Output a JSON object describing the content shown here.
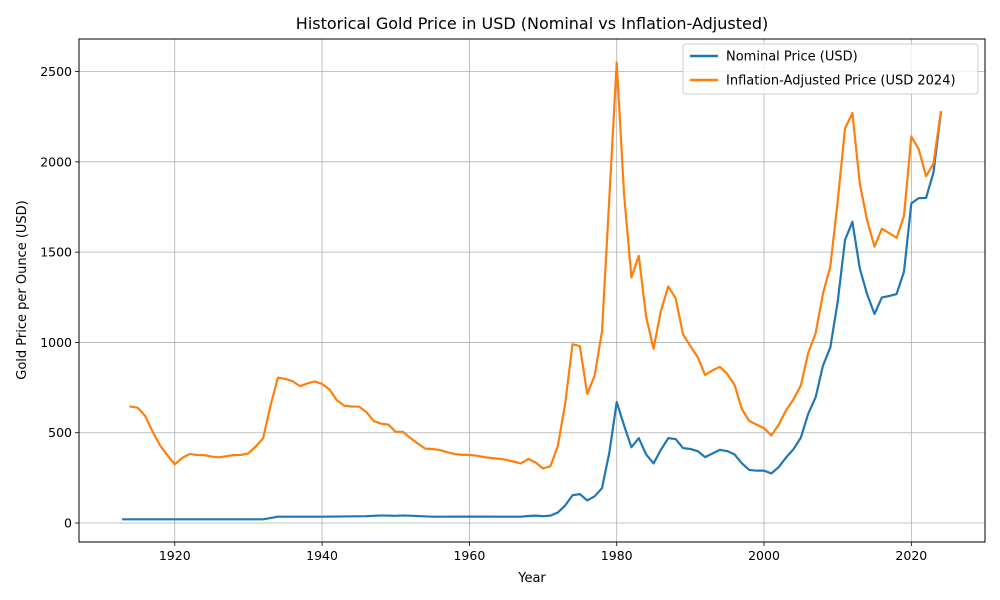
{
  "chart_data": {
    "type": "line",
    "title": "Historical Gold Price in USD (Nominal vs Inflation-Adjusted)",
    "xlabel": "Year",
    "ylabel": "Gold Price per Ounce (USD)",
    "xlim": [
      1907,
      2030
    ],
    "ylim": [
      -105,
      2680
    ],
    "xticks": [
      1920,
      1940,
      1960,
      1980,
      2000,
      2020
    ],
    "yticks": [
      0,
      500,
      1000,
      1500,
      2000,
      2500
    ],
    "grid": true,
    "legend_position": "top-right",
    "series": [
      {
        "name": "Nominal Price (USD)",
        "color": "#1f77b4",
        "points": [
          [
            1913,
            20.67
          ],
          [
            1920,
            20.67
          ],
          [
            1932,
            20.67
          ],
          [
            1934,
            35
          ],
          [
            1940,
            35
          ],
          [
            1946,
            38
          ],
          [
            1948,
            42
          ],
          [
            1950,
            40
          ],
          [
            1951,
            42
          ],
          [
            1955,
            35
          ],
          [
            1960,
            35.3
          ],
          [
            1967,
            35
          ],
          [
            1968,
            39
          ],
          [
            1969,
            41
          ],
          [
            1970,
            38
          ],
          [
            1971,
            41
          ],
          [
            1972,
            58
          ],
          [
            1973,
            97
          ],
          [
            1974,
            154
          ],
          [
            1975,
            160
          ],
          [
            1976,
            125
          ],
          [
            1977,
            148
          ],
          [
            1978,
            193
          ],
          [
            1979,
            390
          ],
          [
            1980,
            670
          ],
          [
            1981,
            540
          ],
          [
            1982,
            420
          ],
          [
            1983,
            470
          ],
          [
            1984,
            380
          ],
          [
            1985,
            330
          ],
          [
            1986,
            405
          ],
          [
            1987,
            470
          ],
          [
            1988,
            465
          ],
          [
            1989,
            415
          ],
          [
            1990,
            410
          ],
          [
            1991,
            398
          ],
          [
            1992,
            365
          ],
          [
            1993,
            385
          ],
          [
            1994,
            405
          ],
          [
            1995,
            398
          ],
          [
            1996,
            380
          ],
          [
            1997,
            330
          ],
          [
            1998,
            294
          ],
          [
            1999,
            290
          ],
          [
            2000,
            290
          ],
          [
            2001,
            275
          ],
          [
            2002,
            310
          ],
          [
            2003,
            363
          ],
          [
            2004,
            409
          ],
          [
            2005,
            473
          ],
          [
            2006,
            605
          ],
          [
            2007,
            696
          ],
          [
            2008,
            871
          ],
          [
            2009,
            972
          ],
          [
            2010,
            1224
          ],
          [
            2011,
            1568
          ],
          [
            2012,
            1668
          ],
          [
            2013,
            1410
          ],
          [
            2014,
            1266
          ],
          [
            2015,
            1158
          ],
          [
            2016,
            1249
          ],
          [
            2017,
            1257
          ],
          [
            2018,
            1268
          ],
          [
            2019,
            1392
          ],
          [
            2020,
            1770
          ],
          [
            2021,
            1799
          ],
          [
            2022,
            1800
          ],
          [
            2023,
            1940
          ],
          [
            2024,
            2270
          ]
        ]
      },
      {
        "name": "Inflation-Adjusted Price (USD 2024)",
        "color": "#ff7f0e",
        "points": [
          [
            1914,
            645
          ],
          [
            1915,
            638
          ],
          [
            1916,
            592
          ],
          [
            1917,
            505
          ],
          [
            1918,
            430
          ],
          [
            1919,
            375
          ],
          [
            1920,
            325
          ],
          [
            1921,
            360
          ],
          [
            1922,
            382
          ],
          [
            1923,
            377
          ],
          [
            1924,
            376
          ],
          [
            1925,
            368
          ],
          [
            1926,
            364
          ],
          [
            1927,
            370
          ],
          [
            1928,
            376
          ],
          [
            1929,
            377
          ],
          [
            1930,
            386
          ],
          [
            1931,
            424
          ],
          [
            1932,
            470
          ],
          [
            1933,
            650
          ],
          [
            1934,
            805
          ],
          [
            1935,
            798
          ],
          [
            1936,
            785
          ],
          [
            1937,
            758
          ],
          [
            1938,
            773
          ],
          [
            1939,
            784
          ],
          [
            1940,
            770
          ],
          [
            1941,
            740
          ],
          [
            1942,
            680
          ],
          [
            1943,
            650
          ],
          [
            1944,
            645
          ],
          [
            1945,
            645
          ],
          [
            1946,
            615
          ],
          [
            1947,
            565
          ],
          [
            1948,
            550
          ],
          [
            1949,
            545
          ],
          [
            1950,
            505
          ],
          [
            1951,
            505
          ],
          [
            1952,
            470
          ],
          [
            1953,
            440
          ],
          [
            1954,
            412
          ],
          [
            1955,
            410
          ],
          [
            1956,
            404
          ],
          [
            1957,
            392
          ],
          [
            1958,
            382
          ],
          [
            1959,
            378
          ],
          [
            1960,
            377
          ],
          [
            1961,
            373
          ],
          [
            1962,
            365
          ],
          [
            1963,
            360
          ],
          [
            1964,
            356
          ],
          [
            1965,
            350
          ],
          [
            1966,
            340
          ],
          [
            1967,
            330
          ],
          [
            1968,
            355
          ],
          [
            1969,
            335
          ],
          [
            1970,
            302
          ],
          [
            1971,
            315
          ],
          [
            1972,
            425
          ],
          [
            1973,
            660
          ],
          [
            1974,
            990
          ],
          [
            1975,
            980
          ],
          [
            1976,
            715
          ],
          [
            1977,
            815
          ],
          [
            1978,
            1060
          ],
          [
            1979,
            1800
          ],
          [
            1980,
            2550
          ],
          [
            1981,
            1820
          ],
          [
            1982,
            1360
          ],
          [
            1983,
            1480
          ],
          [
            1984,
            1140
          ],
          [
            1985,
            965
          ],
          [
            1986,
            1175
          ],
          [
            1987,
            1310
          ],
          [
            1988,
            1245
          ],
          [
            1989,
            1045
          ],
          [
            1990,
            980
          ],
          [
            1991,
            918
          ],
          [
            1992,
            820
          ],
          [
            1993,
            845
          ],
          [
            1994,
            865
          ],
          [
            1995,
            826
          ],
          [
            1996,
            765
          ],
          [
            1997,
            630
          ],
          [
            1998,
            565
          ],
          [
            1999,
            545
          ],
          [
            2000,
            525
          ],
          [
            2001,
            485
          ],
          [
            2002,
            545
          ],
          [
            2003,
            625
          ],
          [
            2004,
            685
          ],
          [
            2005,
            762
          ],
          [
            2006,
            942
          ],
          [
            2007,
            1050
          ],
          [
            2008,
            1270
          ],
          [
            2009,
            1420
          ],
          [
            2010,
            1780
          ],
          [
            2011,
            2185
          ],
          [
            2012,
            2270
          ],
          [
            2013,
            1880
          ],
          [
            2014,
            1675
          ],
          [
            2015,
            1530
          ],
          [
            2016,
            1630
          ],
          [
            2017,
            1605
          ],
          [
            2018,
            1580
          ],
          [
            2019,
            1700
          ],
          [
            2020,
            2140
          ],
          [
            2021,
            2070
          ],
          [
            2022,
            1920
          ],
          [
            2023,
            1990
          ],
          [
            2024,
            2275
          ]
        ]
      }
    ]
  }
}
